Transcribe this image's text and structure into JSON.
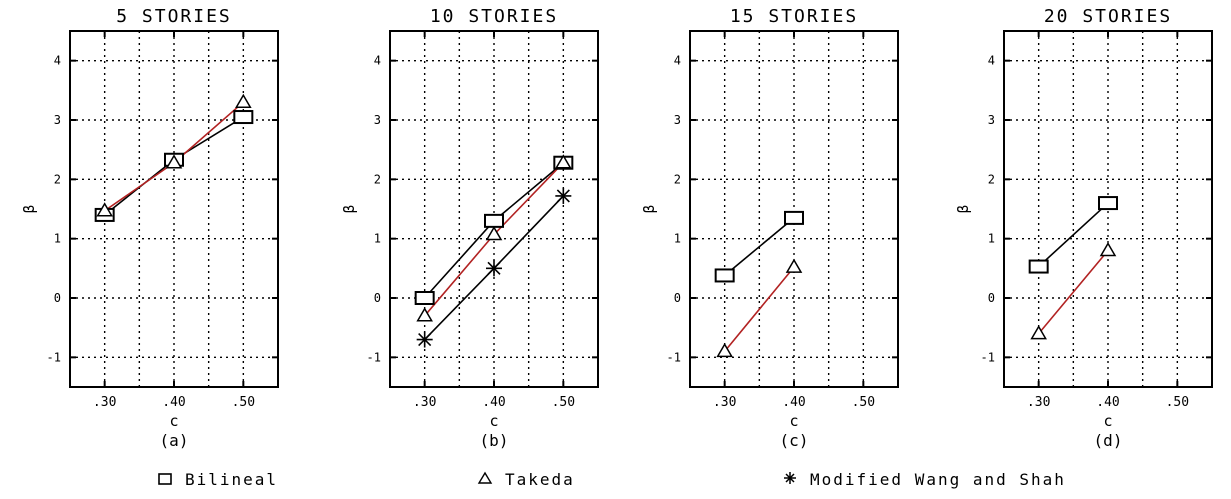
{
  "chart_data": [
    {
      "type": "line",
      "title": "5 STORIES",
      "subcaption": "(a)",
      "xlabel": "c",
      "ylabel": "β",
      "x": [
        0.3,
        0.4,
        0.5
      ],
      "xticks": [
        ".30",
        ".40",
        ".50"
      ],
      "xlim": [
        0.25,
        0.55
      ],
      "ylim": [
        -1.5,
        4.5
      ],
      "yticks": [
        "-1",
        "0",
        "1",
        "2",
        "3",
        "4"
      ],
      "grid": true,
      "series": [
        {
          "name": "Bilineal",
          "marker": "square",
          "color": "#000000",
          "x": [
            0.3,
            0.4,
            0.5
          ],
          "values": [
            1.4,
            2.33,
            3.05
          ]
        },
        {
          "name": "Takeda",
          "marker": "triangle",
          "color": "#b22222",
          "x": [
            0.3,
            0.4,
            0.5
          ],
          "values": [
            1.47,
            2.28,
            3.3
          ]
        }
      ]
    },
    {
      "type": "line",
      "title": "10 STORIES",
      "subcaption": "(b)",
      "xlabel": "c",
      "ylabel": "β",
      "x": [
        0.3,
        0.4,
        0.5
      ],
      "xticks": [
        ".30",
        ".40",
        ".50"
      ],
      "xlim": [
        0.25,
        0.55
      ],
      "ylim": [
        -1.5,
        4.5
      ],
      "yticks": [
        "-1",
        "0",
        "1",
        "2",
        "3",
        "4"
      ],
      "grid": true,
      "series": [
        {
          "name": "Bilineal",
          "marker": "square",
          "color": "#000000",
          "x": [
            0.3,
            0.4,
            0.5
          ],
          "values": [
            0.0,
            1.3,
            2.28
          ]
        },
        {
          "name": "Takeda",
          "marker": "triangle",
          "color": "#b22222",
          "x": [
            0.3,
            0.4,
            0.5
          ],
          "values": [
            -0.3,
            1.07,
            2.28
          ]
        },
        {
          "name": "Modified Wang and Shah",
          "marker": "star",
          "color": "#000000",
          "x": [
            0.3,
            0.4,
            0.5
          ],
          "values": [
            -0.7,
            0.5,
            1.72
          ]
        }
      ]
    },
    {
      "type": "line",
      "title": "15 STORIES",
      "subcaption": "(c)",
      "xlabel": "c",
      "ylabel": "β",
      "x": [
        0.3,
        0.4,
        0.5
      ],
      "xticks": [
        ".30",
        ".40",
        ".50"
      ],
      "xlim": [
        0.25,
        0.55
      ],
      "ylim": [
        -1.5,
        4.5
      ],
      "yticks": [
        "-1",
        "0",
        "1",
        "2",
        "3",
        "4"
      ],
      "grid": true,
      "series": [
        {
          "name": "Bilineal",
          "marker": "square",
          "color": "#000000",
          "x": [
            0.3,
            0.4
          ],
          "values": [
            0.38,
            1.35
          ]
        },
        {
          "name": "Takeda",
          "marker": "triangle",
          "color": "#b22222",
          "x": [
            0.3,
            0.4
          ],
          "values": [
            -0.9,
            0.52
          ]
        }
      ]
    },
    {
      "type": "line",
      "title": "20 STORIES",
      "subcaption": "(d)",
      "xlabel": "c",
      "ylabel": "β",
      "x": [
        0.3,
        0.4,
        0.5
      ],
      "xticks": [
        ".30",
        ".40",
        ".50"
      ],
      "xlim": [
        0.25,
        0.55
      ],
      "ylim": [
        -1.5,
        4.5
      ],
      "yticks": [
        "-1",
        "0",
        "1",
        "2",
        "3",
        "4"
      ],
      "grid": true,
      "series": [
        {
          "name": "Bilineal",
          "marker": "square",
          "color": "#000000",
          "x": [
            0.3,
            0.4
          ],
          "values": [
            0.53,
            1.6
          ]
        },
        {
          "name": "Takeda",
          "marker": "triangle",
          "color": "#b22222",
          "x": [
            0.3,
            0.4
          ],
          "values": [
            -0.6,
            0.8
          ]
        }
      ]
    }
  ],
  "legend": {
    "placement": "bottom",
    "items": [
      {
        "label": "Bilineal",
        "marker": "square"
      },
      {
        "label": "Takeda",
        "marker": "triangle"
      },
      {
        "label": "Modified Wang and Shah",
        "marker": "star"
      }
    ]
  }
}
